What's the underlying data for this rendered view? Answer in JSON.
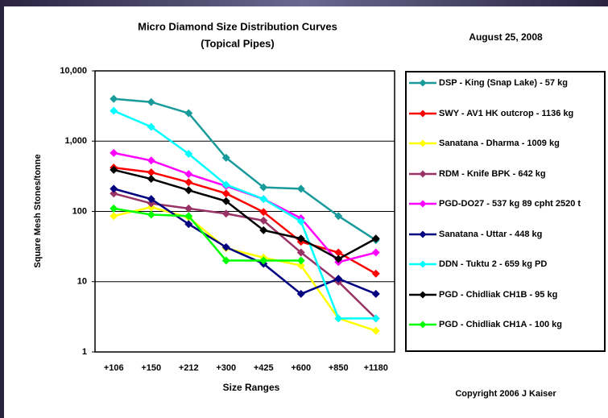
{
  "chart_data": {
    "type": "line",
    "title": "Micro Diamond Size Distribution Curves",
    "subtitle": "(Topical Pipes)",
    "date": "August 25, 2008",
    "copyright": "Copyright 2006 J Kaiser",
    "x_label": "Size Ranges",
    "y_label": "Square Mesh Stones/tonne",
    "log_scale": true,
    "grid": true,
    "legend_position": "right",
    "categories": [
      "+106",
      "+150",
      "+212",
      "+300",
      "+425",
      "+600",
      "+850",
      "+1180"
    ],
    "ylim": [
      1,
      10000
    ],
    "yticks": [
      1,
      10,
      100,
      {
        "value": 1000,
        "label": "1,000"
      },
      {
        "value": 10000,
        "label": "10,000"
      }
    ],
    "series": [
      {
        "name": "DSP - King (Snap Lake) - 57 kg",
        "color": "#1a9b9b",
        "values": [
          4000,
          3600,
          2500,
          580,
          220,
          210,
          86,
          39
        ]
      },
      {
        "name": "SWY - AV1 HK outcrop - 1136 kg",
        "color": "#ff0000",
        "values": [
          420,
          360,
          260,
          180,
          98,
          37,
          26,
          13
        ]
      },
      {
        "name": "Sanatana - Dharma - 1009 kg",
        "color": "#ffff00",
        "values": [
          86,
          115,
          82,
          30,
          22,
          17,
          3,
          2
        ]
      },
      {
        "name": "RDM - Knife BPK - 642 kg",
        "color": "#993366",
        "values": [
          180,
          130,
          110,
          93,
          74,
          26,
          10,
          3
        ]
      },
      {
        "name": "PGD-DO27 - 537 kg 89 cpht 2520 t",
        "color": "#ff00ff",
        "values": [
          680,
          530,
          340,
          230,
          150,
          80,
          19,
          26
        ]
      },
      {
        "name": "Sanatana - Uttar - 448 kg",
        "color": "#000080",
        "values": [
          210,
          150,
          66,
          31,
          18,
          6.7,
          11,
          6.7
        ]
      },
      {
        "name": "DDN - Tuktu 2 - 659 kg PD",
        "color": "#00ffff",
        "values": [
          2700,
          1600,
          660,
          240,
          150,
          72,
          3,
          3
        ]
      },
      {
        "name": "PGD - Chidliak CH1B - 95 kg",
        "color": "#000000",
        "values": [
          390,
          290,
          200,
          140,
          54,
          41,
          21,
          41
        ]
      },
      {
        "name": "PGD - Chidliak CH1A - 100 kg",
        "color": "#00ff00",
        "values": [
          110,
          90,
          86,
          20,
          20,
          20,
          null,
          null
        ]
      }
    ]
  }
}
